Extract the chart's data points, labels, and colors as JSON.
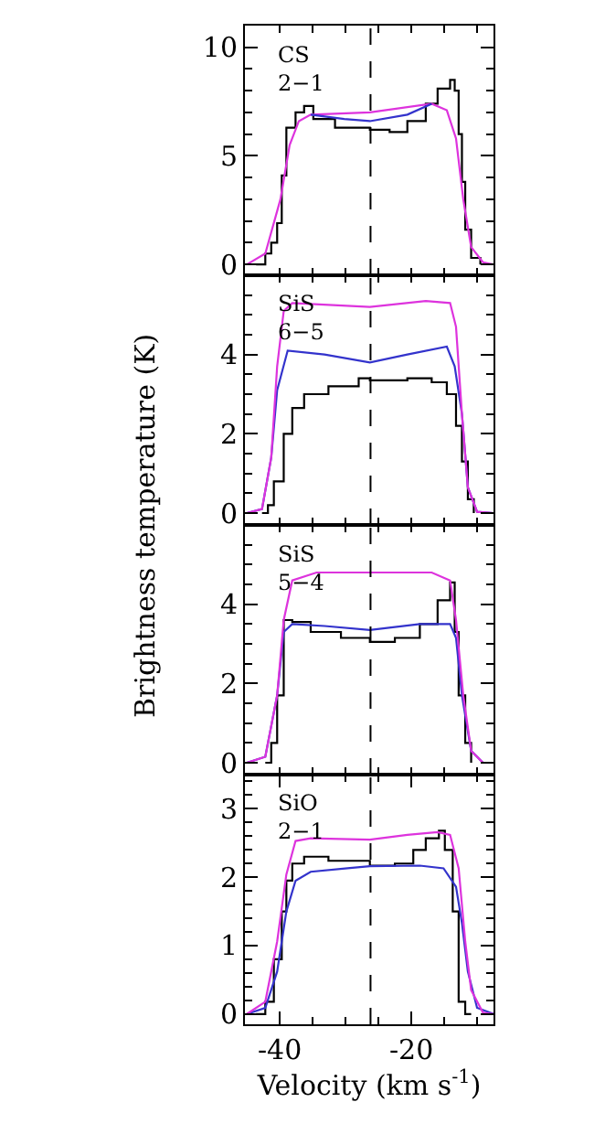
{
  "chart_data": [
    {
      "type": "line",
      "annotations": [
        "CS\n2−1"
      ],
      "xlim": [
        -45.3,
        -7.5
      ],
      "ylim": [
        -0.5,
        11
      ],
      "xticks": [
        {
          "value": -40,
          "label": null
        },
        {
          "value": -35,
          "label": null
        },
        {
          "value": -30,
          "label": null
        },
        {
          "value": -25,
          "label": null
        },
        {
          "value": -20,
          "label": null
        },
        {
          "value": -15,
          "label": null
        },
        {
          "value": -10,
          "label": null
        }
      ],
      "yticks": [
        0,
        5,
        10,
        {
          "value": 1,
          "label": null
        },
        {
          "value": 2,
          "label": null
        },
        {
          "value": 3,
          "label": null
        },
        {
          "value": 4,
          "label": null
        },
        {
          "value": 6,
          "label": null
        },
        {
          "value": 7,
          "label": null
        },
        {
          "value": 8,
          "label": null
        },
        {
          "value": 9,
          "label": null
        }
      ],
      "tick_labels": "y",
      "ref_lines": [
        {
          "axis": "x",
          "value": -26.2,
          "label": null,
          "line_style": "dashed",
          "color": "#000000"
        }
      ],
      "series": [
        {
          "type": "step",
          "color": "#000000",
          "x": [
            -43.6,
            -42.2,
            -41.3,
            -40.4,
            -39.7,
            -39.0,
            -37.6,
            -36.3,
            -34.9,
            -31.6,
            -26.3,
            -23.3,
            -20.6,
            -17.8,
            -16.0,
            -14.1,
            -13.4,
            -12.8,
            -12.3,
            -11.8,
            -10.9,
            -9.5
          ],
          "values": [
            0,
            0.5,
            1.0,
            1.9,
            4.1,
            6.3,
            7.0,
            7.3,
            6.7,
            6.3,
            6.2,
            6.1,
            6.6,
            7.4,
            8.1,
            8.5,
            8.0,
            6.0,
            3.8,
            1.6,
            0.3,
            0
          ]
        },
        {
          "type": "line",
          "color": "#dd33dd",
          "x": [
            -45.0,
            -42.2,
            -39.9,
            -38.5,
            -37.1,
            -35.3,
            -26.3,
            -16.9,
            -14.6,
            -13.2,
            -12.1,
            -10.9,
            -9.1,
            -7.6
          ],
          "values": [
            0,
            0.5,
            3.0,
            5.5,
            6.6,
            6.9,
            7.0,
            7.4,
            7.1,
            5.8,
            3.0,
            0.8,
            0.1,
            0
          ]
        },
        {
          "type": "line",
          "color": "#3333cc",
          "x": [
            -35.3,
            -30.2,
            -26.3,
            -20.6,
            -16.9
          ],
          "values": [
            6.9,
            6.7,
            6.6,
            6.9,
            7.4
          ]
        }
      ]
    },
    {
      "type": "line",
      "annotations": [
        "SiS\n6−5"
      ],
      "ylabel": "Brightness temperature (K)",
      "xlim": [
        -45.3,
        -7.5
      ],
      "ylim": [
        -0.3,
        6
      ],
      "xticks": [
        {
          "value": -40,
          "label": null
        },
        {
          "value": -35,
          "label": null
        },
        {
          "value": -30,
          "label": null
        },
        {
          "value": -25,
          "label": null
        },
        {
          "value": -20,
          "label": null
        },
        {
          "value": -15,
          "label": null
        },
        {
          "value": -10,
          "label": null
        }
      ],
      "yticks": [
        0,
        2,
        4,
        {
          "value": 0.5,
          "label": null
        },
        {
          "value": 1,
          "label": null
        },
        {
          "value": 1.5,
          "label": null
        },
        {
          "value": 2.5,
          "label": null
        },
        {
          "value": 3,
          "label": null
        },
        {
          "value": 3.5,
          "label": null
        },
        {
          "value": 4.5,
          "label": null
        },
        {
          "value": 5,
          "label": null
        },
        {
          "value": 5.5,
          "label": null
        }
      ],
      "tick_labels": "y",
      "ref_lines": [
        {
          "axis": "x",
          "value": -26.2,
          "label": null,
          "line_style": "dashed",
          "color": "#000000"
        }
      ],
      "series": [
        {
          "type": "step",
          "color": "#000000",
          "x": [
            -42.7,
            -41.8,
            -40.9,
            -39.4,
            -38.1,
            -36.3,
            -32.6,
            -28.0,
            -26.3,
            -20.6,
            -16.9,
            -14.6,
            -13.2,
            -12.3,
            -11.4,
            -10.5
          ],
          "values": [
            0,
            0.2,
            0.8,
            2.0,
            2.65,
            3.0,
            3.2,
            3.4,
            3.35,
            3.4,
            3.3,
            3.0,
            2.2,
            1.3,
            0.35,
            0
          ]
        },
        {
          "type": "line",
          "color": "#3333cc",
          "x": [
            -45.0,
            -42.7,
            -41.3,
            -40.4,
            -38.8,
            -33.2,
            -26.3,
            -20.6,
            -14.6,
            -13.4,
            -12.3,
            -11.4,
            -10.0,
            -7.5
          ],
          "values": [
            0,
            0.1,
            1.4,
            3.1,
            4.1,
            4.0,
            3.8,
            4.0,
            4.2,
            3.7,
            2.5,
            0.65,
            0.03,
            0
          ]
        },
        {
          "type": "line",
          "color": "#dd33dd",
          "x": [
            -45.0,
            -42.7,
            -41.3,
            -40.4,
            -39.4,
            -38.1,
            -26.3,
            -17.8,
            -14.1,
            -13.2,
            -12.3,
            -11.4,
            -10.0,
            -7.5
          ],
          "values": [
            0,
            0.1,
            1.4,
            3.7,
            5.1,
            5.3,
            5.2,
            5.35,
            5.3,
            4.7,
            2.5,
            0.65,
            0.03,
            0
          ]
        }
      ]
    },
    {
      "type": "line",
      "annotations": [
        "SiS\n5−4"
      ],
      "xlim": [
        -45.3,
        -7.5
      ],
      "ylim": [
        -0.3,
        6
      ],
      "xticks": [
        {
          "value": -40,
          "label": null
        },
        {
          "value": -35,
          "label": null
        },
        {
          "value": -30,
          "label": null
        },
        {
          "value": -25,
          "label": null
        },
        {
          "value": -20,
          "label": null
        },
        {
          "value": -15,
          "label": null
        },
        {
          "value": -10,
          "label": null
        }
      ],
      "yticks": [
        0,
        2,
        4,
        {
          "value": 0.5,
          "label": null
        },
        {
          "value": 1,
          "label": null
        },
        {
          "value": 1.5,
          "label": null
        },
        {
          "value": 2.5,
          "label": null
        },
        {
          "value": 3,
          "label": null
        },
        {
          "value": 3.5,
          "label": null
        },
        {
          "value": 4.5,
          "label": null
        },
        {
          "value": 5,
          "label": null
        },
        {
          "value": 5.5,
          "label": null
        }
      ],
      "tick_labels": "y",
      "ref_lines": [
        {
          "axis": "x",
          "value": -26.2,
          "label": null,
          "line_style": "dashed",
          "color": "#000000"
        }
      ],
      "series": [
        {
          "type": "step",
          "color": "#000000",
          "x": [
            -42.2,
            -41.3,
            -40.4,
            -39.4,
            -38.1,
            -35.3,
            -30.7,
            -26.3,
            -22.5,
            -18.7,
            -16.0,
            -14.1,
            -13.4,
            -12.8,
            -11.8,
            -10.9
          ],
          "values": [
            0,
            0.5,
            1.7,
            3.6,
            3.55,
            3.3,
            3.15,
            3.05,
            3.15,
            3.5,
            4.1,
            4.55,
            3.3,
            1.7,
            0.5,
            0
          ]
        },
        {
          "type": "line",
          "color": "#3333cc",
          "x": [
            -45.0,
            -42.2,
            -40.4,
            -39.4,
            -38.1,
            -33.2,
            -26.3,
            -18.7,
            -14.1,
            -13.2,
            -12.3,
            -10.9,
            -9.1
          ],
          "values": [
            0,
            0.15,
            1.7,
            3.3,
            3.5,
            3.45,
            3.35,
            3.5,
            3.5,
            3.15,
            1.7,
            0.3,
            0
          ]
        },
        {
          "type": "line",
          "color": "#dd33dd",
          "x": [
            -45.0,
            -42.2,
            -40.4,
            -39.4,
            -38.1,
            -34.4,
            -26.3,
            -16.9,
            -14.1,
            -13.2,
            -12.1,
            -10.9,
            -9.1
          ],
          "values": [
            0,
            0.15,
            1.7,
            3.6,
            4.6,
            4.8,
            4.8,
            4.8,
            4.6,
            3.6,
            1.7,
            0.3,
            0
          ]
        }
      ]
    },
    {
      "type": "line",
      "annotations": [
        "SiO\n2−1"
      ],
      "xlabel": "Velocity (km s$^{-1}$)",
      "xlim": [
        -45.3,
        -7.5
      ],
      "ylim": [
        -0.15,
        3.5
      ],
      "xticks": [
        -40,
        -20,
        {
          "value": -35,
          "label": null
        },
        {
          "value": -30,
          "label": null
        },
        {
          "value": -25,
          "label": null
        },
        {
          "value": -15,
          "label": null
        },
        {
          "value": -10,
          "label": null
        }
      ],
      "yticks": [
        0,
        1,
        2,
        3,
        {
          "value": 0.2,
          "label": null
        },
        {
          "value": 0.4,
          "label": null
        },
        {
          "value": 0.6,
          "label": null
        },
        {
          "value": 0.8,
          "label": null
        },
        {
          "value": 1.2,
          "label": null
        },
        {
          "value": 1.4,
          "label": null
        },
        {
          "value": 1.6,
          "label": null
        },
        {
          "value": 1.8,
          "label": null
        },
        {
          "value": 2.2,
          "label": null
        },
        {
          "value": 2.4,
          "label": null
        },
        {
          "value": 2.6,
          "label": null
        },
        {
          "value": 2.8,
          "label": null
        },
        {
          "value": 3.2,
          "label": null
        },
        {
          "value": 3.4,
          "label": null
        }
      ],
      "ref_lines": [
        {
          "axis": "x",
          "value": -26.2,
          "label": null,
          "line_style": "dashed",
          "color": "#000000"
        }
      ],
      "series": [
        {
          "type": "step",
          "color": "#000000",
          "x": [
            -43.6,
            -42.2,
            -40.9,
            -39.7,
            -39.0,
            -38.1,
            -36.3,
            -32.6,
            -26.3,
            -22.5,
            -19.7,
            -17.8,
            -15.8,
            -14.9,
            -13.7,
            -12.8,
            -11.8,
            -10.9
          ],
          "values": [
            0,
            0.18,
            0.8,
            1.5,
            1.95,
            2.2,
            2.3,
            2.24,
            2.17,
            2.2,
            2.4,
            2.57,
            2.68,
            2.4,
            1.5,
            0.18,
            0,
            0
          ]
        },
        {
          "type": "line",
          "color": "#3333cc",
          "x": [
            -45.0,
            -42.2,
            -40.4,
            -39.0,
            -37.6,
            -35.3,
            -29.7,
            -26.3,
            -18.7,
            -15.1,
            -13.2,
            -12.3,
            -11.4,
            -10.0,
            -7.5
          ],
          "values": [
            0,
            0.09,
            0.62,
            1.5,
            1.95,
            2.08,
            2.13,
            2.16,
            2.17,
            2.13,
            1.86,
            1.33,
            0.62,
            0.09,
            0
          ]
        },
        {
          "type": "line",
          "color": "#dd33dd",
          "x": [
            -45.0,
            -42.2,
            -40.4,
            -39.0,
            -37.6,
            -35.3,
            -26.3,
            -20.6,
            -16.0,
            -14.1,
            -12.8,
            -11.8,
            -10.9,
            -9.1,
            -7.5
          ],
          "values": [
            0,
            0.18,
            1.06,
            2.04,
            2.53,
            2.57,
            2.55,
            2.62,
            2.66,
            2.62,
            2.13,
            1.06,
            0.35,
            0.02,
            0
          ]
        }
      ]
    }
  ]
}
